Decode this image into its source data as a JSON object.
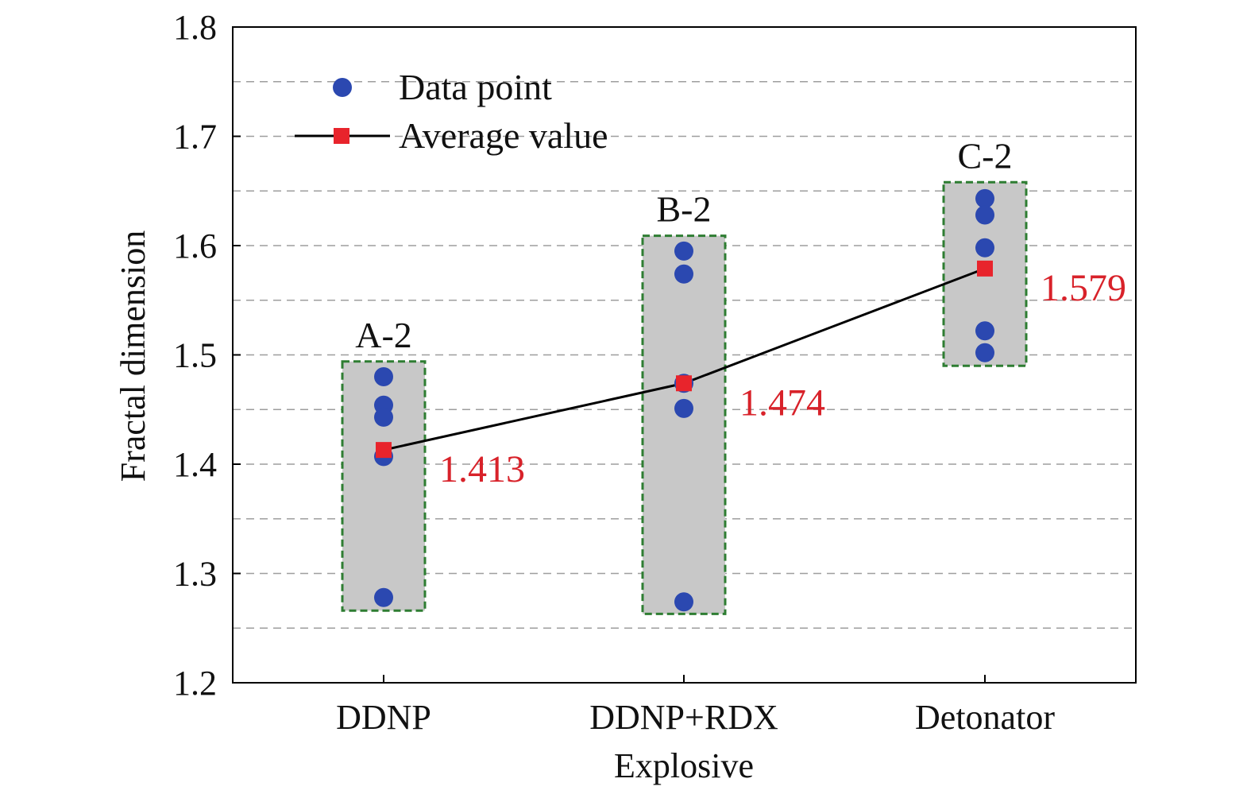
{
  "chart_data": {
    "type": "scatter",
    "categories": [
      "DDNP",
      "DDNP+RDX",
      "Detonator"
    ],
    "group_labels": [
      "A-2",
      "B-2",
      "C-2"
    ],
    "xlabel": "Explosive",
    "ylabel": "Fractal dimension",
    "ylim": [
      1.2,
      1.8
    ],
    "yticks": [
      1.2,
      1.3,
      1.4,
      1.5,
      1.6,
      1.7,
      1.8
    ],
    "ytick_labels": [
      "1.2",
      "1.3",
      "1.4",
      "1.5",
      "1.6",
      "1.7",
      "1.8"
    ],
    "grid": "dashed horizontal, every 0.05",
    "legend_position": "top-left",
    "series": [
      {
        "name": "Data point",
        "marker": "circle",
        "color": "#2b48b0",
        "points": [
          [
            1.48,
            1.454,
            1.443,
            1.407,
            1.278
          ],
          [
            1.595,
            1.574,
            1.474,
            1.451,
            1.274
          ],
          [
            1.643,
            1.628,
            1.598,
            1.522,
            1.502
          ]
        ]
      },
      {
        "name": "Average value",
        "marker": "square",
        "color": "#e8242c",
        "line_color": "#000000",
        "values": [
          1.413,
          1.474,
          1.579
        ],
        "value_labels": [
          "1.413",
          "1.474",
          "1.579"
        ]
      }
    ],
    "range_boxes": [
      {
        "ymin": 1.266,
        "ymax": 1.494
      },
      {
        "ymin": 1.263,
        "ymax": 1.609
      },
      {
        "ymin": 1.49,
        "ymax": 1.658
      }
    ],
    "box_fill": "#c8c8c8",
    "box_border": "#2e7d32",
    "annotation_color": "#d8222a"
  }
}
